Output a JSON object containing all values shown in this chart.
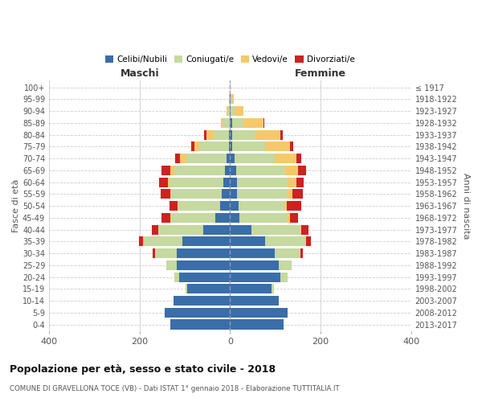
{
  "age_groups": [
    "0-4",
    "5-9",
    "10-14",
    "15-19",
    "20-24",
    "25-29",
    "30-34",
    "35-39",
    "40-44",
    "45-49",
    "50-54",
    "55-59",
    "60-64",
    "65-69",
    "70-74",
    "75-79",
    "80-84",
    "85-89",
    "90-94",
    "95-99",
    "100+"
  ],
  "birth_years": [
    "2013-2017",
    "2008-2012",
    "2003-2007",
    "1998-2002",
    "1993-1997",
    "1988-1992",
    "1983-1987",
    "1978-1982",
    "1973-1977",
    "1968-1972",
    "1963-1967",
    "1958-1962",
    "1953-1957",
    "1948-1952",
    "1943-1947",
    "1938-1942",
    "1933-1937",
    "1928-1932",
    "1923-1927",
    "1918-1922",
    "≤ 1917"
  ],
  "colors": {
    "celibi_nubili": "#3a6ea8",
    "coniugati": "#c5d9a0",
    "vedovi": "#f5c96a",
    "divorziati": "#cc2222"
  },
  "xlim": 400,
  "title": "Popolazione per età, sesso e stato civile - 2018",
  "subtitle": "COMUNE DI GRAVELLONA TOCE (VB) - Dati ISTAT 1° gennaio 2018 - Elaborazione TUTTITALIA.IT",
  "xlabel_left": "Maschi",
  "xlabel_right": "Femmine",
  "ylabel_left": "Fasce di età",
  "ylabel_right": "Anni di nascita",
  "legend_labels": [
    "Celibi/Nubili",
    "Coniugati/e",
    "Vedovi/e",
    "Divorziati/e"
  ],
  "background_color": "#ffffff",
  "grid_color": "#cccccc",
  "males_cel": [
    132,
    145,
    125,
    95,
    112,
    118,
    118,
    105,
    60,
    32,
    22,
    18,
    15,
    12,
    8,
    3,
    2,
    1,
    0,
    0,
    0
  ],
  "males_con": [
    0,
    0,
    0,
    4,
    12,
    22,
    48,
    88,
    98,
    98,
    92,
    112,
    118,
    112,
    88,
    65,
    35,
    15,
    5,
    2,
    0
  ],
  "males_ved": [
    0,
    0,
    0,
    0,
    0,
    0,
    0,
    0,
    0,
    2,
    2,
    2,
    5,
    8,
    14,
    10,
    15,
    5,
    2,
    0,
    0
  ],
  "males_div": [
    0,
    0,
    0,
    0,
    0,
    0,
    5,
    8,
    15,
    20,
    18,
    22,
    18,
    20,
    12,
    8,
    5,
    0,
    0,
    0,
    0
  ],
  "females_nub": [
    118,
    128,
    108,
    92,
    112,
    108,
    98,
    78,
    48,
    20,
    18,
    16,
    16,
    14,
    10,
    5,
    5,
    4,
    2,
    2,
    0
  ],
  "females_con": [
    0,
    0,
    0,
    5,
    15,
    28,
    58,
    88,
    108,
    108,
    102,
    112,
    112,
    108,
    88,
    72,
    52,
    25,
    8,
    2,
    0
  ],
  "females_ved": [
    0,
    0,
    0,
    0,
    0,
    0,
    0,
    2,
    2,
    4,
    6,
    10,
    18,
    28,
    48,
    55,
    55,
    45,
    20,
    5,
    0
  ],
  "females_div": [
    0,
    0,
    0,
    0,
    0,
    0,
    5,
    10,
    15,
    18,
    32,
    22,
    16,
    18,
    12,
    8,
    5,
    2,
    0,
    0,
    0
  ]
}
